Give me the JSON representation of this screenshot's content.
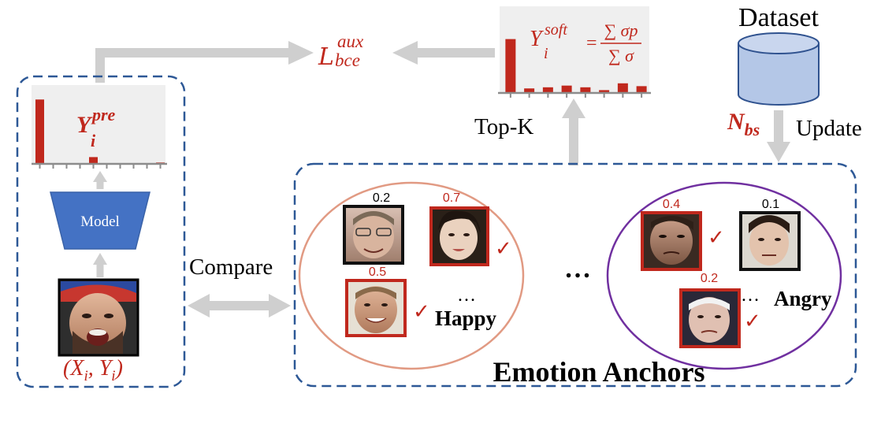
{
  "colors": {
    "accent_red": "#c0281d",
    "dash_blue": "#2d5896",
    "arrow_gray": "#cfcfcf",
    "model_blue": "#4472c4",
    "cylinder_fill": "#b4c7e7",
    "cylinder_stroke": "#2f528f",
    "ellipse_orange": "#e19a83",
    "ellipse_purple": "#7030a0",
    "chart_bg": "#efefef"
  },
  "labels": {
    "loss_main": "L",
    "loss_sup": "aux",
    "loss_sub": "bce",
    "soft_main": "Y",
    "soft_sub": "i",
    "soft_sup": "soft",
    "soft_eq": "=",
    "soft_num": "∑ σp",
    "soft_den": "∑ σ",
    "pre_main": "Y",
    "pre_sub": "i",
    "pre_sup": "pre",
    "dataset": "Dataset",
    "nbs_main": "N",
    "nbs_sub": "bs",
    "update": "Update",
    "topk": "Top-K",
    "model": "Model",
    "compare": "Compare",
    "input_label": "(X",
    "input_label_sub_i": "i",
    "input_label_mid": ", Y",
    "input_label_sub_i2": "i",
    "input_label_end": ")",
    "middle_dots": "…",
    "happy": "Happy",
    "angry": "Angry",
    "happy_dots": "…",
    "angry_dots": "…",
    "emotion_anchors": "Emotion Anchors"
  },
  "icons": {
    "checkmark": "✓",
    "face": "face-thumbnail-icon",
    "database": "database-icon"
  },
  "chart_data": [
    {
      "type": "bar",
      "name_hint": "soft-label-distribution",
      "values": [
        0.95,
        0.08,
        0.1,
        0.13,
        0.1,
        0.05,
        0.17,
        0.12
      ]
    },
    {
      "type": "bar",
      "name_hint": "predicted-distribution",
      "values": [
        0.95,
        0.0,
        0.0,
        0.0,
        0.1,
        0.0,
        0.0,
        0.0,
        0.0,
        0.02
      ]
    }
  ],
  "anchors": {
    "happy": [
      {
        "score": "0.2",
        "score_color": "#000000",
        "border": "#111111",
        "check": false
      },
      {
        "score": "0.7",
        "score_color": "#c0281d",
        "border": "#c0281d",
        "check": true
      },
      {
        "score": "0.5",
        "score_color": "#c0281d",
        "border": "#c0281d",
        "check": true
      }
    ],
    "angry": [
      {
        "score": "0.4",
        "score_color": "#c0281d",
        "border": "#c0281d",
        "check": true
      },
      {
        "score": "0.1",
        "score_color": "#000000",
        "border": "#111111",
        "check": false
      },
      {
        "score": "0.2",
        "score_color": "#c0281d",
        "border": "#c0281d",
        "check": true
      }
    ]
  }
}
